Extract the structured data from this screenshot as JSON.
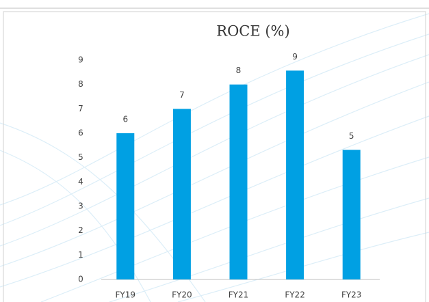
{
  "chart_data": {
    "type": "bar",
    "title": "ROCE (%)",
    "categories": [
      "FY19",
      "FY20",
      "FY21",
      "FY22",
      "FY23"
    ],
    "values": [
      6,
      7,
      8,
      8.57,
      5.32
    ],
    "value_labels": [
      "6",
      "7",
      "8",
      "9",
      "5"
    ],
    "color": "#00a0e3",
    "ylim": [
      0,
      9
    ],
    "yticks": [
      0,
      1,
      2,
      3,
      4,
      5,
      6,
      7,
      8,
      9
    ],
    "grid": false
  }
}
